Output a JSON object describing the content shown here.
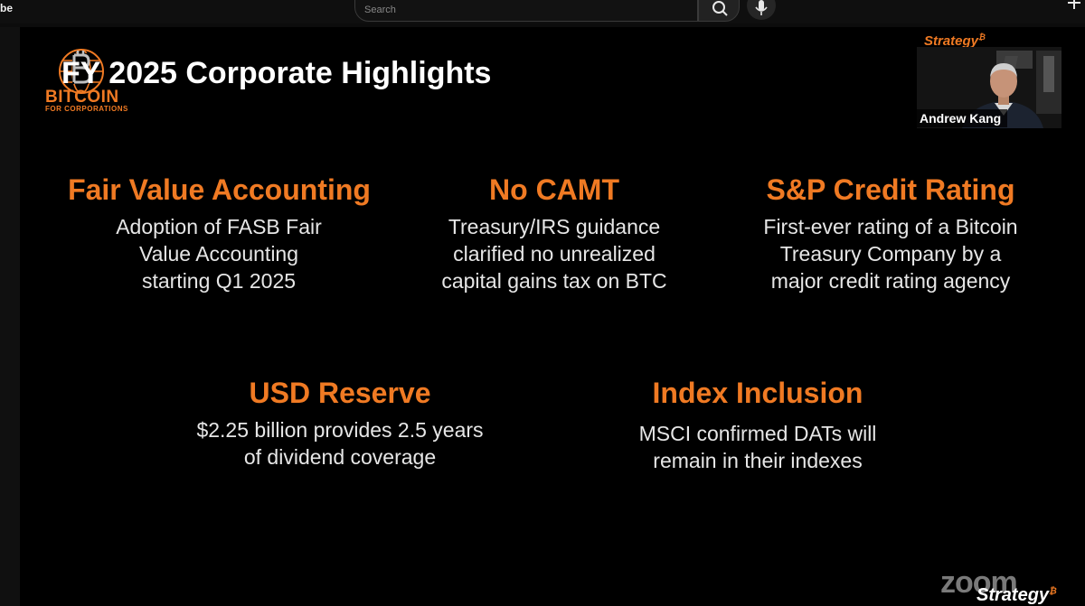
{
  "browser": {
    "app_fragment": "be",
    "search_placeholder": "Search"
  },
  "slide": {
    "title": "FY 2025 Corporate Highlights",
    "logo": {
      "word": "BITCOIN",
      "sub": "FOR CORPORATIONS"
    },
    "highlights": [
      {
        "title": "Fair Value Accounting",
        "lines": [
          "Adoption of FASB Fair",
          "Value Accounting",
          "starting Q1 2025"
        ]
      },
      {
        "title": "No CAMT",
        "lines": [
          "Treasury/IRS guidance",
          "clarified no unrealized",
          "capital gains tax on BTC"
        ]
      },
      {
        "title": "S&P Credit Rating",
        "lines": [
          "First-ever rating of a Bitcoin",
          "Treasury Company by a",
          "major credit rating agency"
        ]
      },
      {
        "title": "USD Reserve",
        "lines": [
          "$2.25 billion provides 2.5 years",
          "of dividend coverage"
        ]
      },
      {
        "title": "Index Inclusion",
        "lines": [
          "MSCI confirmed DATs will",
          "remain in their indexes"
        ]
      }
    ]
  },
  "overlay": {
    "strategy_logo": "Strategy",
    "strategy_mark": "₿",
    "presenter_name": "Andrew Kang",
    "zoom_watermark": "zoom",
    "footer_brand": "Strategy",
    "footer_mark": "₿"
  },
  "colors": {
    "accent": "#f07a23",
    "background": "#000000",
    "text": "#e6e6e6"
  },
  "icons": [
    "search-icon",
    "microphone-icon",
    "plus-icon",
    "bitcoin-globe-logo-icon"
  ]
}
